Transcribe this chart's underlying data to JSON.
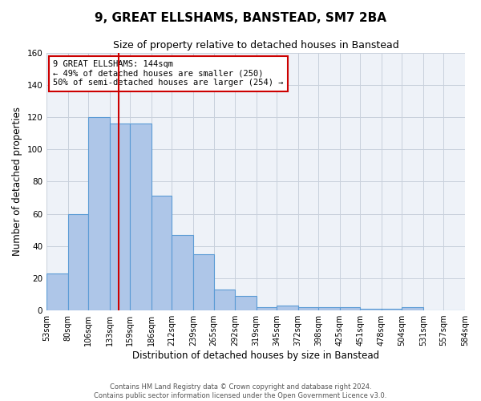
{
  "title": "9, GREAT ELLSHAMS, BANSTEAD, SM7 2BA",
  "subtitle": "Size of property relative to detached houses in Banstead",
  "xlabel": "Distribution of detached houses by size in Banstead",
  "ylabel": "Number of detached properties",
  "bin_edges": [
    53,
    80,
    106,
    133,
    159,
    186,
    212,
    239,
    265,
    292,
    319,
    345,
    372,
    398,
    425,
    451,
    478,
    504,
    531,
    557,
    584
  ],
  "bar_heights": [
    23,
    60,
    120,
    116,
    116,
    71,
    47,
    35,
    13,
    9,
    2,
    3,
    2,
    2,
    2,
    1,
    1,
    2,
    0,
    0
  ],
  "tick_labels": [
    "53sqm",
    "80sqm",
    "106sqm",
    "133sqm",
    "159sqm",
    "186sqm",
    "212sqm",
    "239sqm",
    "265sqm",
    "292sqm",
    "319sqm",
    "345sqm",
    "372sqm",
    "398sqm",
    "425sqm",
    "451sqm",
    "478sqm",
    "504sqm",
    "531sqm",
    "557sqm",
    "584sqm"
  ],
  "bar_color": "#aec6e8",
  "bar_edge_color": "#5b9bd5",
  "vline_x": 144,
  "vline_color": "#cc0000",
  "annotation_box_text": "9 GREAT ELLSHAMS: 144sqm\n← 49% of detached houses are smaller (250)\n50% of semi-detached houses are larger (254) →",
  "annotation_box_color": "#cc0000",
  "annotation_box_facecolor": "white",
  "ylim": [
    0,
    160
  ],
  "yticks": [
    0,
    20,
    40,
    60,
    80,
    100,
    120,
    140,
    160
  ],
  "grid_color": "#c8d0dc",
  "bg_color": "#eef2f8",
  "footer_line1": "Contains HM Land Registry data © Crown copyright and database right 2024.",
  "footer_line2": "Contains public sector information licensed under the Open Government Licence v3.0.",
  "title_fontsize": 11,
  "subtitle_fontsize": 9,
  "xlabel_fontsize": 8.5,
  "ylabel_fontsize": 8.5,
  "tick_fontsize": 7,
  "annot_fontsize": 7.5
}
